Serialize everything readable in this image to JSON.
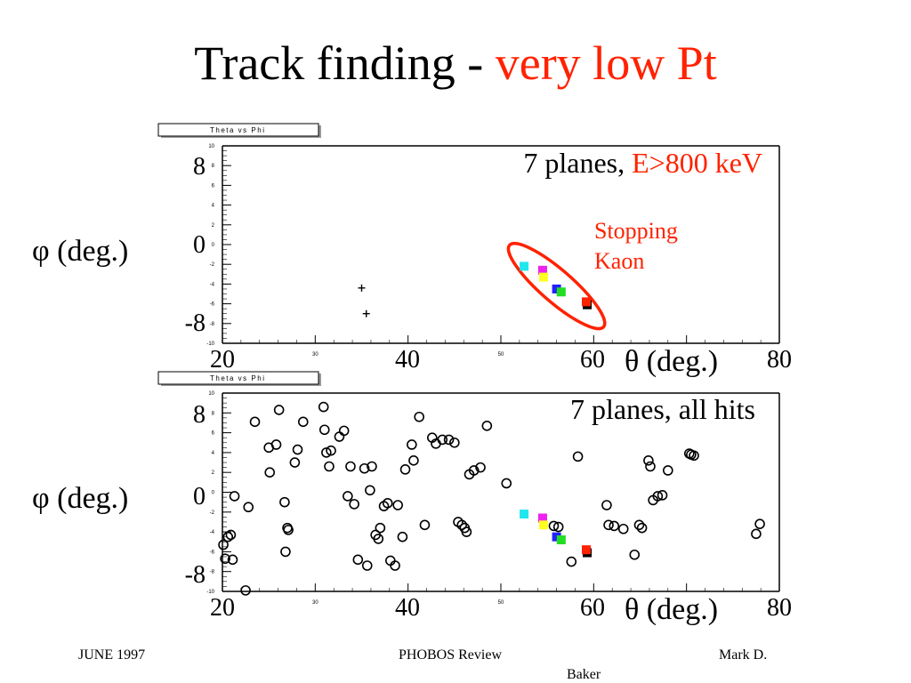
{
  "title": {
    "main": "Track finding - ",
    "accent": "very low Pt"
  },
  "colors": {
    "accent": "#ff2200",
    "text": "#000000"
  },
  "footer": {
    "date": "JUNE 1997",
    "center": "PHOBOS Review",
    "author_line1": "Mark D.",
    "author_line2": "Baker"
  },
  "chart_data": [
    {
      "type": "scatter",
      "title_box": "Theta vs Phi",
      "annotation": {
        "prefix": "7 planes, ",
        "accent": "E>800 keV"
      },
      "callout": [
        "Stopping",
        "Kaon"
      ],
      "xlabel": "θ (deg.)",
      "ylabel": "φ (deg.)",
      "xlim": [
        20,
        80
      ],
      "ylim": [
        -10,
        10
      ],
      "x_big_ticks": [
        "20",
        "40",
        "60",
        "80"
      ],
      "y_big_ticks": [
        "8",
        "0",
        "-8"
      ],
      "x_small_ticks": [
        "30",
        "50"
      ],
      "y_small_ticks": [
        "10",
        "8",
        "6",
        "4",
        "2",
        "0",
        "-2",
        "-4",
        "-6",
        "-8",
        "-10"
      ],
      "series": [
        {
          "marker": "cross",
          "points": [
            [
              35.0,
              -4.4
            ],
            [
              35.5,
              -7.0
            ]
          ]
        },
        {
          "marker": "square-color",
          "points": [
            {
              "x": 52.5,
              "y": -2.2,
              "color": "#22e6ee"
            },
            {
              "x": 54.5,
              "y": -2.6,
              "color": "#ee22ee"
            },
            {
              "x": 54.6,
              "y": -3.3,
              "color": "#ffff22"
            },
            {
              "x": 56.0,
              "y": -4.5,
              "color": "#2222ff"
            },
            {
              "x": 56.5,
              "y": -4.8,
              "color": "#22dd22"
            },
            {
              "x": 59.3,
              "y": -6.1,
              "color": "#000000"
            },
            {
              "x": 59.2,
              "y": -5.8,
              "color": "#ff2200"
            }
          ]
        }
      ]
    },
    {
      "type": "scatter",
      "title_box": "Theta vs Phi",
      "annotation": {
        "prefix": "7 planes, all hits",
        "accent": ""
      },
      "xlabel": "θ (deg.)",
      "ylabel": "φ (deg.)",
      "xlim": [
        20,
        80
      ],
      "ylim": [
        -10,
        10
      ],
      "x_big_ticks": [
        "20",
        "40",
        "60",
        "80"
      ],
      "y_big_ticks": [
        "8",
        "0",
        "-8"
      ],
      "x_small_ticks": [
        "30",
        "50"
      ],
      "y_small_ticks": [
        "10",
        "8",
        "6",
        "4",
        "2",
        "0",
        "-2",
        "-4",
        "-6",
        "-8",
        "-10"
      ],
      "series": [
        {
          "marker": "circle",
          "points": [
            [
              20.1,
              -5.3
            ],
            [
              20.3,
              -6.7
            ],
            [
              20.6,
              -4.5
            ],
            [
              20.9,
              -4.3
            ],
            [
              21.1,
              -6.8
            ],
            [
              21.3,
              -0.4
            ],
            [
              22.5,
              -9.9
            ],
            [
              22.8,
              -1.5
            ],
            [
              23.5,
              7.1
            ],
            [
              25.0,
              4.5
            ],
            [
              25.1,
              2.0
            ],
            [
              25.8,
              4.8
            ],
            [
              26.1,
              8.3
            ],
            [
              26.7,
              -1.0
            ],
            [
              26.8,
              -6.0
            ],
            [
              27.0,
              -3.6
            ],
            [
              27.1,
              -3.8
            ],
            [
              27.8,
              3.0
            ],
            [
              28.1,
              4.3
            ],
            [
              28.7,
              7.1
            ],
            [
              30.9,
              8.6
            ],
            [
              31.0,
              6.3
            ],
            [
              31.2,
              4.0
            ],
            [
              31.5,
              2.6
            ],
            [
              31.7,
              4.2
            ],
            [
              32.6,
              5.6
            ],
            [
              33.1,
              6.2
            ],
            [
              33.5,
              -0.4
            ],
            [
              33.8,
              2.6
            ],
            [
              34.2,
              -1.2
            ],
            [
              34.6,
              -6.8
            ],
            [
              35.3,
              2.4
            ],
            [
              35.6,
              -7.4
            ],
            [
              35.9,
              0.2
            ],
            [
              36.1,
              2.6
            ],
            [
              36.5,
              -4.3
            ],
            [
              36.8,
              -4.7
            ],
            [
              37.0,
              -3.6
            ],
            [
              37.4,
              -1.4
            ],
            [
              37.8,
              -1.1
            ],
            [
              38.1,
              -6.9
            ],
            [
              38.6,
              -7.4
            ],
            [
              38.9,
              -1.3
            ],
            [
              39.4,
              -4.5
            ],
            [
              39.7,
              2.3
            ],
            [
              40.4,
              4.8
            ],
            [
              40.6,
              3.2
            ],
            [
              41.2,
              7.6
            ],
            [
              41.8,
              -3.3
            ],
            [
              42.6,
              5.5
            ],
            [
              43.0,
              4.9
            ],
            [
              43.7,
              5.3
            ],
            [
              44.4,
              5.3
            ],
            [
              45.0,
              5.0
            ],
            [
              45.4,
              -3.0
            ],
            [
              45.8,
              -3.3
            ],
            [
              46.1,
              -3.6
            ],
            [
              46.3,
              -4.0
            ],
            [
              46.6,
              1.8
            ],
            [
              47.1,
              2.2
            ],
            [
              47.8,
              2.5
            ],
            [
              48.5,
              6.7
            ],
            [
              50.6,
              0.9
            ],
            [
              55.7,
              -3.4
            ],
            [
              56.2,
              -3.5
            ],
            [
              57.6,
              -7.0
            ],
            [
              58.3,
              3.6
            ],
            [
              61.4,
              -1.3
            ],
            [
              61.6,
              -3.3
            ],
            [
              62.2,
              -3.4
            ],
            [
              63.2,
              -3.7
            ],
            [
              64.4,
              -6.3
            ],
            [
              64.9,
              -3.3
            ],
            [
              65.2,
              -3.6
            ],
            [
              65.9,
              3.2
            ],
            [
              66.1,
              2.6
            ],
            [
              66.4,
              -0.8
            ],
            [
              66.9,
              -0.4
            ],
            [
              67.4,
              -0.3
            ],
            [
              68.0,
              2.2
            ],
            [
              70.3,
              3.9
            ],
            [
              70.5,
              3.8
            ],
            [
              70.8,
              3.7
            ],
            [
              77.5,
              -4.2
            ],
            [
              77.9,
              -3.2
            ]
          ]
        },
        {
          "marker": "square-color",
          "points": [
            {
              "x": 52.5,
              "y": -2.2,
              "color": "#22e6ee"
            },
            {
              "x": 54.5,
              "y": -2.6,
              "color": "#ee22ee"
            },
            {
              "x": 54.6,
              "y": -3.3,
              "color": "#ffff22"
            },
            {
              "x": 56.0,
              "y": -4.5,
              "color": "#2222ff"
            },
            {
              "x": 56.5,
              "y": -4.8,
              "color": "#22dd22"
            },
            {
              "x": 59.3,
              "y": -6.1,
              "color": "#000000"
            },
            {
              "x": 59.2,
              "y": -5.8,
              "color": "#ff2200"
            }
          ]
        }
      ]
    }
  ]
}
